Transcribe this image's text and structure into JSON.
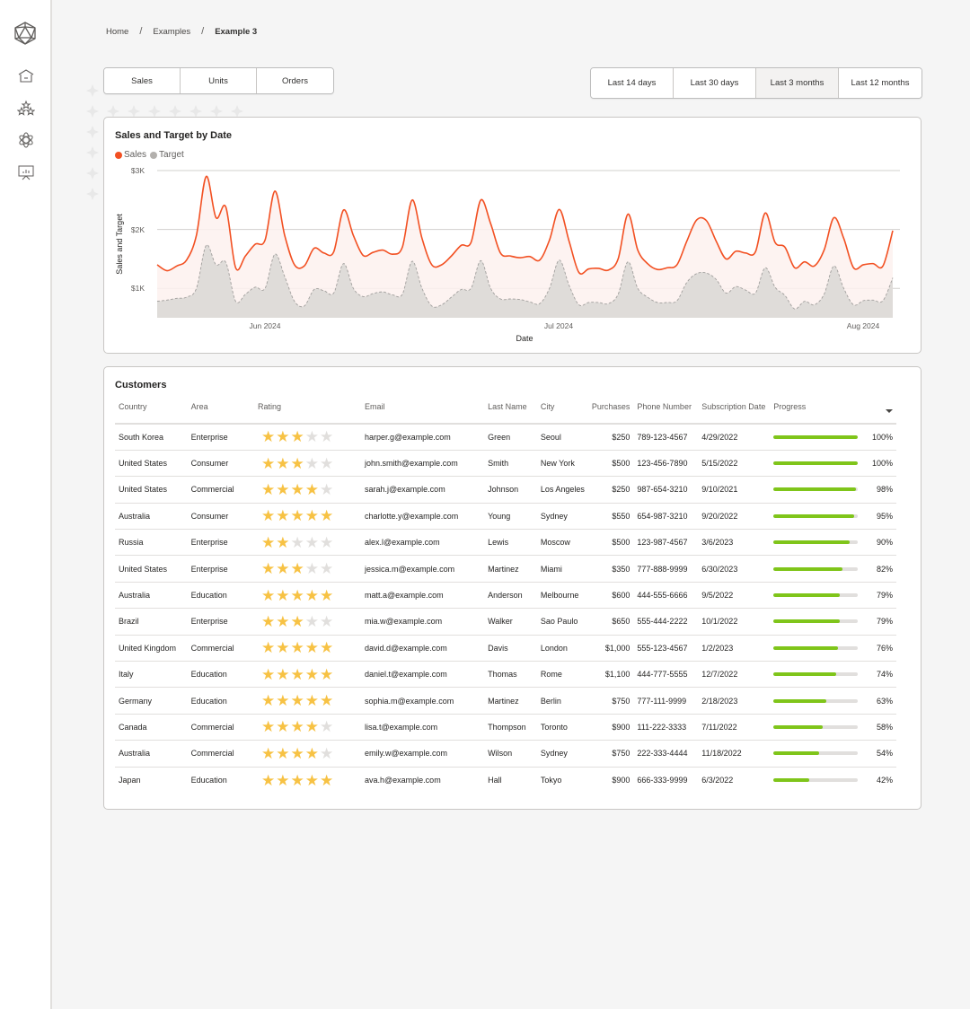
{
  "sidebar": {
    "logo": "icosahedron-logo-icon",
    "items": [
      {
        "icon": "home-icon",
        "label": "Home"
      },
      {
        "icon": "stars-icon",
        "label": "Favorites"
      },
      {
        "icon": "atom-icon",
        "label": "Apps"
      },
      {
        "icon": "presentation-chart-icon",
        "label": "Reports"
      }
    ]
  },
  "breadcrumb": {
    "items": [
      "Home",
      "Examples",
      "Example 3"
    ],
    "separator": "/"
  },
  "metric_tabs": {
    "items": [
      "Sales",
      "Units",
      "Orders"
    ],
    "selected": null
  },
  "range_tabs": {
    "items": [
      "Last 14 days",
      "Last 30 days",
      "Last 3 months",
      "Last 12 months"
    ],
    "selected": "Last 3 months"
  },
  "chart": {
    "title": "Sales and Target by Date",
    "legend": [
      {
        "label": "Sales",
        "color": "#f25022"
      },
      {
        "label": "Target",
        "color": "#b3b0ad"
      }
    ],
    "yticks": [
      "$3K",
      "$2K",
      "$1K"
    ],
    "xticks": [
      "Jun 2024",
      "Jul 2024",
      "Aug 2024"
    ],
    "xlabel": "Date",
    "ylabel": "Sales and Target"
  },
  "chart_data": {
    "type": "line",
    "title": "Sales and Target by Date",
    "xlabel": "Date",
    "ylabel": "Sales and Target",
    "ylim": [
      500,
      3000
    ],
    "yticks": [
      1000,
      2000,
      3000
    ],
    "xticks": [
      "Jun 2024",
      "Jul 2024",
      "Aug 2024"
    ],
    "legend_position": "top-left",
    "grid": true,
    "x": [
      "2024-05-21",
      "2024-05-22",
      "2024-05-23",
      "2024-05-24",
      "2024-05-25",
      "2024-05-26",
      "2024-05-27",
      "2024-05-28",
      "2024-05-29",
      "2024-05-30",
      "2024-05-31",
      "2024-06-01",
      "2024-06-02",
      "2024-06-03",
      "2024-06-04",
      "2024-06-05",
      "2024-06-06",
      "2024-06-07",
      "2024-06-08",
      "2024-06-09",
      "2024-06-10",
      "2024-06-11",
      "2024-06-12",
      "2024-06-13",
      "2024-06-14",
      "2024-06-15",
      "2024-06-16",
      "2024-06-17",
      "2024-06-18",
      "2024-06-19",
      "2024-06-20",
      "2024-06-21",
      "2024-06-22",
      "2024-06-23",
      "2024-06-24",
      "2024-06-25",
      "2024-06-26",
      "2024-06-27",
      "2024-06-28",
      "2024-06-29",
      "2024-06-30",
      "2024-07-01",
      "2024-07-02",
      "2024-07-03",
      "2024-07-04",
      "2024-07-05",
      "2024-07-06",
      "2024-07-07",
      "2024-07-08",
      "2024-07-09",
      "2024-07-10",
      "2024-07-11",
      "2024-07-12",
      "2024-07-13",
      "2024-07-14",
      "2024-07-15",
      "2024-07-16",
      "2024-07-17",
      "2024-07-18",
      "2024-07-19",
      "2024-07-20",
      "2024-07-21",
      "2024-07-22",
      "2024-07-23",
      "2024-07-24",
      "2024-07-25",
      "2024-07-26",
      "2024-07-27",
      "2024-07-28",
      "2024-07-29",
      "2024-07-30",
      "2024-07-31",
      "2024-08-01",
      "2024-08-02",
      "2024-08-03",
      "2024-08-04"
    ],
    "series": [
      {
        "name": "Sales",
        "color": "#f25022",
        "values": [
          1400,
          1300,
          1380,
          1480,
          1900,
          2900,
          2200,
          2380,
          1350,
          1550,
          1750,
          1820,
          2650,
          1900,
          1400,
          1380,
          1680,
          1600,
          1620,
          2330,
          1900,
          1560,
          1610,
          1650,
          1580,
          1700,
          2500,
          1850,
          1400,
          1400,
          1550,
          1730,
          1780,
          2500,
          2100,
          1600,
          1550,
          1520,
          1540,
          1480,
          1820,
          2340,
          1800,
          1270,
          1330,
          1340,
          1310,
          1500,
          2260,
          1650,
          1420,
          1320,
          1350,
          1400,
          1800,
          2160,
          2150,
          1800,
          1500,
          1630,
          1600,
          1620,
          2280,
          1780,
          1700,
          1350,
          1450,
          1380,
          1650,
          2200,
          1850,
          1350,
          1400,
          1420,
          1380,
          1980
        ]
      },
      {
        "name": "Target",
        "color": "#b3b0ad",
        "values": [
          780,
          800,
          830,
          850,
          1000,
          1730,
          1400,
          1440,
          780,
          900,
          1020,
          1000,
          1580,
          1200,
          780,
          700,
          980,
          960,
          920,
          1420,
          1000,
          860,
          910,
          940,
          890,
          900,
          1460,
          1000,
          700,
          720,
          850,
          980,
          1000,
          1470,
          1000,
          820,
          820,
          810,
          770,
          740,
          1000,
          1480,
          1050,
          720,
          760,
          760,
          740,
          900,
          1450,
          1000,
          850,
          760,
          760,
          790,
          1100,
          1250,
          1260,
          1150,
          920,
          1030,
          970,
          920,
          1350,
          1020,
          880,
          650,
          780,
          720,
          900,
          1380,
          1000,
          720,
          790,
          800,
          790,
          1180
        ]
      }
    ]
  },
  "customers": {
    "title": "Customers",
    "columns": [
      "Country",
      "Area",
      "Rating",
      "Email",
      "Last Name",
      "City",
      "Purchases",
      "Phone Number",
      "Subscription Date",
      "Progress",
      ""
    ],
    "sort_icon": "sort-descending-icon",
    "rows": [
      {
        "country": "South Korea",
        "area": "Enterprise",
        "rating": 3,
        "email": "harper.g@example.com",
        "last_name": "Green",
        "city": "Seoul",
        "purchases": "$250",
        "phone": "789-123-4567",
        "subscription": "4/29/2022",
        "progress": 100,
        "progress_label": "100%"
      },
      {
        "country": "United States",
        "area": "Consumer",
        "rating": 3,
        "email": "john.smith@example.com",
        "last_name": "Smith",
        "city": "New York",
        "purchases": "$500",
        "phone": "123-456-7890",
        "subscription": "5/15/2022",
        "progress": 100,
        "progress_label": "100%"
      },
      {
        "country": "United States",
        "area": "Commercial",
        "rating": 4,
        "email": "sarah.j@example.com",
        "last_name": "Johnson",
        "city": "Los Angeles",
        "purchases": "$250",
        "phone": "987-654-3210",
        "subscription": "9/10/2021",
        "progress": 98,
        "progress_label": "98%"
      },
      {
        "country": "Australia",
        "area": "Consumer",
        "rating": 5,
        "email": "charlotte.y@example.com",
        "last_name": "Young",
        "city": "Sydney",
        "purchases": "$550",
        "phone": "654-987-3210",
        "subscription": "9/20/2022",
        "progress": 95,
        "progress_label": "95%"
      },
      {
        "country": "Russia",
        "area": "Enterprise",
        "rating": 2,
        "email": "alex.l@example.com",
        "last_name": "Lewis",
        "city": "Moscow",
        "purchases": "$500",
        "phone": "123-987-4567",
        "subscription": "3/6/2023",
        "progress": 90,
        "progress_label": "90%"
      },
      {
        "country": "United States",
        "area": "Enterprise",
        "rating": 3,
        "email": "jessica.m@example.com",
        "last_name": "Martinez",
        "city": "Miami",
        "purchases": "$350",
        "phone": "777-888-9999",
        "subscription": "6/30/2023",
        "progress": 82,
        "progress_label": "82%"
      },
      {
        "country": "Australia",
        "area": "Education",
        "rating": 5,
        "email": "matt.a@example.com",
        "last_name": "Anderson",
        "city": "Melbourne",
        "purchases": "$600",
        "phone": "444-555-6666",
        "subscription": "9/5/2022",
        "progress": 79,
        "progress_label": "79%"
      },
      {
        "country": "Brazil",
        "area": "Enterprise",
        "rating": 3,
        "email": "mia.w@example.com",
        "last_name": "Walker",
        "city": "Sao Paulo",
        "purchases": "$650",
        "phone": "555-444-2222",
        "subscription": "10/1/2022",
        "progress": 79,
        "progress_label": "79%"
      },
      {
        "country": "United Kingdom",
        "area": "Commercial",
        "rating": 5,
        "email": "david.d@example.com",
        "last_name": "Davis",
        "city": "London",
        "purchases": "$1,000",
        "phone": "555-123-4567",
        "subscription": "1/2/2023",
        "progress": 76,
        "progress_label": "76%"
      },
      {
        "country": "Italy",
        "area": "Education",
        "rating": 5,
        "email": "daniel.t@example.com",
        "last_name": "Thomas",
        "city": "Rome",
        "purchases": "$1,100",
        "phone": "444-777-5555",
        "subscription": "12/7/2022",
        "progress": 74,
        "progress_label": "74%"
      },
      {
        "country": "Germany",
        "area": "Education",
        "rating": 5,
        "email": "sophia.m@example.com",
        "last_name": "Martinez",
        "city": "Berlin",
        "purchases": "$750",
        "phone": "777-111-9999",
        "subscription": "2/18/2023",
        "progress": 63,
        "progress_label": "63%"
      },
      {
        "country": "Canada",
        "area": "Commercial",
        "rating": 4,
        "email": "lisa.t@example.com",
        "last_name": "Thompson",
        "city": "Toronto",
        "purchases": "$900",
        "phone": "111-222-3333",
        "subscription": "7/11/2022",
        "progress": 58,
        "progress_label": "58%"
      },
      {
        "country": "Australia",
        "area": "Commercial",
        "rating": 4,
        "email": "emily.w@example.com",
        "last_name": "Wilson",
        "city": "Sydney",
        "purchases": "$750",
        "phone": "222-333-4444",
        "subscription": "11/18/2022",
        "progress": 54,
        "progress_label": "54%"
      },
      {
        "country": "Japan",
        "area": "Education",
        "rating": 5,
        "email": "ava.h@example.com",
        "last_name": "Hall",
        "city": "Tokyo",
        "purchases": "$900",
        "phone": "666-333-9999",
        "subscription": "6/3/2022",
        "progress": 42,
        "progress_label": "42%"
      }
    ]
  },
  "colors": {
    "accent": "#f25022",
    "target": "#b3b0ad",
    "progress": "#7fc51a",
    "star": "#f7c244",
    "star_off": "#e1dfdd"
  }
}
